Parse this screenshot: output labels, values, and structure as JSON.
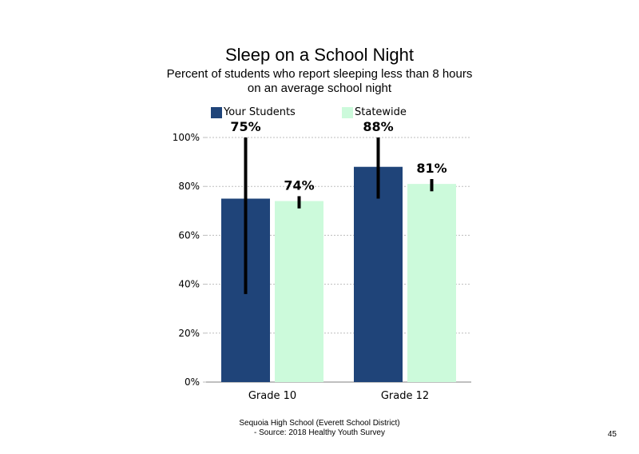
{
  "slide": {
    "title": "Sleep on a School Night",
    "subtitle_line1": "Percent of students who report sleeping less than 8 hours",
    "subtitle_line2": "on an average school night",
    "footer_line1": "Sequoia High School (Everett School District)",
    "footer_line2": "- Source: 2018 Healthy Youth Survey",
    "page_number": "45"
  },
  "chart_data": {
    "type": "bar",
    "title": "Sleep on a School Night",
    "subtitle": "Percent of students who report sleeping less than 8 hours on an average school night",
    "xlabel": "",
    "ylabel": "",
    "categories": [
      "Grade 10",
      "Grade 12"
    ],
    "series": [
      {
        "name": "Your Students",
        "color": "#1f4479",
        "values": [
          75,
          88
        ],
        "labels": [
          "75%",
          "88%"
        ],
        "error_low": [
          36,
          75
        ],
        "error_high": [
          100,
          100
        ]
      },
      {
        "name": "Statewide",
        "color": "#ccfadb",
        "values": [
          74,
          81
        ],
        "labels": [
          "74%",
          "81%"
        ],
        "error_low": [
          71,
          78
        ],
        "error_high": [
          76,
          83
        ]
      }
    ],
    "ylim": [
      0,
      100
    ],
    "yticks": [
      0,
      20,
      40,
      60,
      80,
      100
    ],
    "ytick_labels": [
      "0%",
      "20%",
      "40%",
      "60%",
      "80%",
      "100%"
    ],
    "grid": "horizontal dotted",
    "legend": "top",
    "error_bar_color": "#000000"
  }
}
